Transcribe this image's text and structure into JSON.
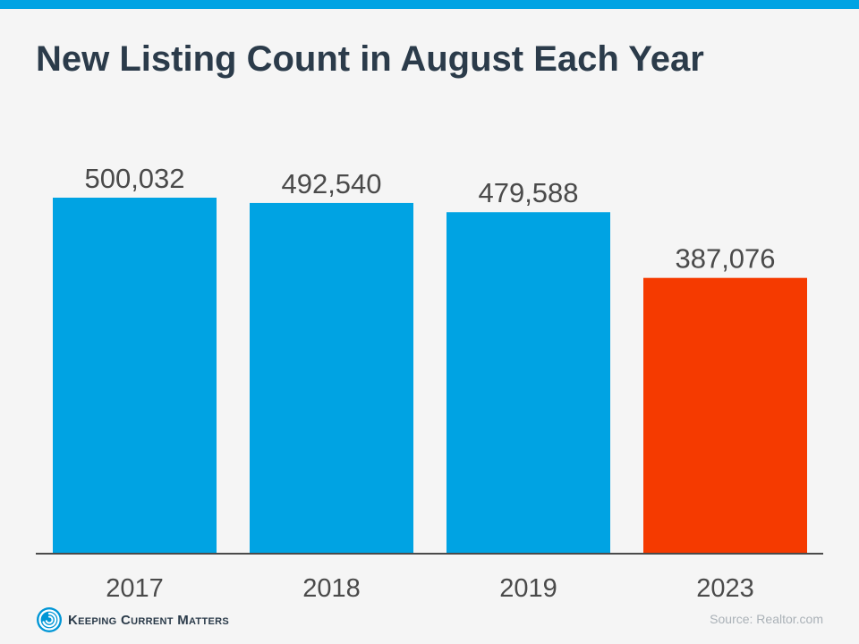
{
  "header": {
    "title": "New Listing Count in August Each Year"
  },
  "chart_data": {
    "type": "bar",
    "title": "New Listing Count in August Each Year",
    "xlabel": "",
    "ylabel": "",
    "categories": [
      "2017",
      "2018",
      "2019",
      "2023"
    ],
    "values": [
      500032,
      492540,
      479588,
      387076
    ],
    "value_labels": [
      "500,032",
      "492,540",
      "479,588",
      "387,076"
    ],
    "bar_colors": [
      "#00a3e3",
      "#00a3e3",
      "#00a3e3",
      "#f53a00"
    ],
    "ylim": [
      0,
      500032
    ],
    "grid": false,
    "legend": "none"
  },
  "footer": {
    "logo_text": "Keeping Current Matters",
    "source": "Source: Realtor.com"
  },
  "colors": {
    "accent": "#00a3e3",
    "highlight": "#f53a00",
    "title": "#2b3b4a",
    "text": "#4a4a4a",
    "background": "#f5f5f5",
    "source_text": "#aab1b7"
  },
  "icons": {
    "logo": "kcm-swirl-logo-icon"
  }
}
